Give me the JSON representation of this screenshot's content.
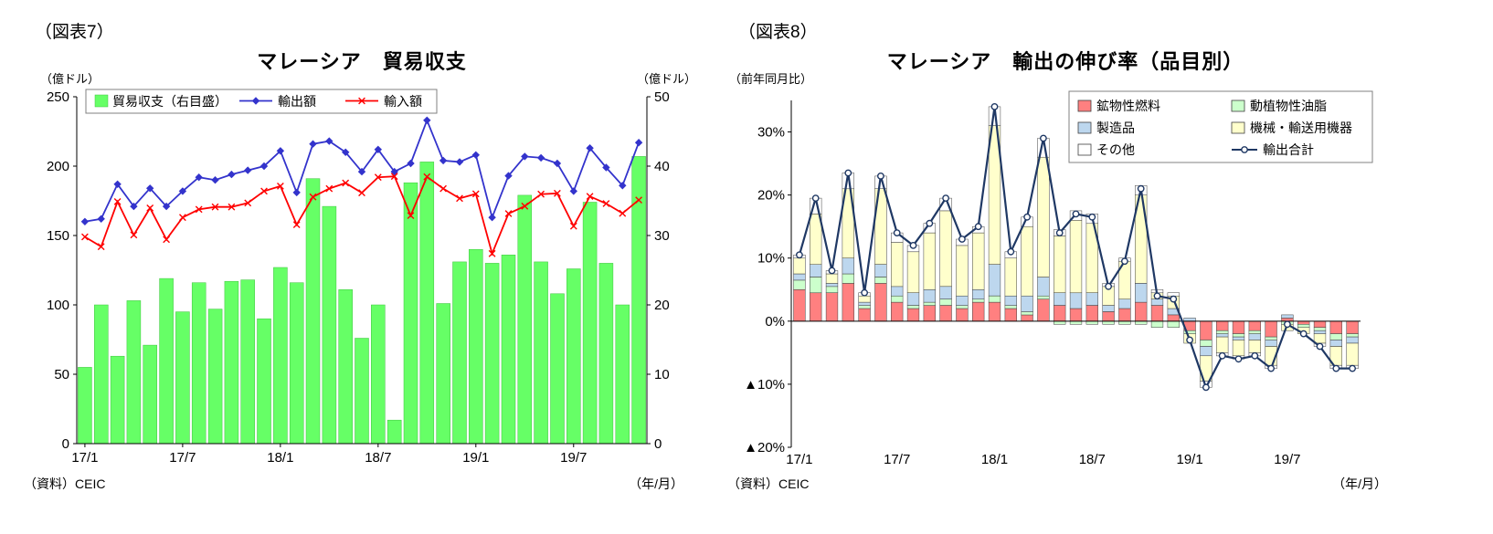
{
  "figure7": {
    "label": "（図表7）",
    "title": "マレーシア　貿易収支",
    "left_axis_unit": "（億ドル）",
    "right_axis_unit": "（億ドル）",
    "source": "（資料）CEIC",
    "x_note": "（年/月）"
  },
  "figure8": {
    "label": "（図表8）",
    "title": "マレーシア　輸出の伸び率（品目別）",
    "y_axis_unit": "（前年同月比）",
    "source": "（資料）CEIC",
    "x_note": "（年/月）"
  },
  "chart_data": [
    {
      "type": "bar+line",
      "title": "マレーシア　貿易収支",
      "x": [
        "17/1",
        "17/2",
        "17/3",
        "17/4",
        "17/5",
        "17/6",
        "17/7",
        "17/8",
        "17/9",
        "17/10",
        "17/11",
        "17/12",
        "18/1",
        "18/2",
        "18/3",
        "18/4",
        "18/5",
        "18/6",
        "18/7",
        "18/8",
        "18/9",
        "18/10",
        "18/11",
        "18/12",
        "19/1",
        "19/2",
        "19/3",
        "19/4",
        "19/5",
        "19/6",
        "19/7",
        "19/8",
        "19/9",
        "19/10",
        "19/11"
      ],
      "x_tick_labels": [
        "17/1",
        "17/7",
        "18/1",
        "18/7",
        "19/1",
        "19/7"
      ],
      "left_axis": {
        "unit": "（億ドル）",
        "range": [
          0,
          250
        ],
        "ticks": [
          0,
          50,
          100,
          150,
          200,
          250
        ]
      },
      "right_axis": {
        "unit": "（億ドル）",
        "range": [
          0,
          50
        ],
        "ticks": [
          0,
          10,
          20,
          30,
          40,
          50
        ]
      },
      "grid": false,
      "legend_position": "top-left",
      "series": [
        {
          "name": "貿易収支（右目盛）",
          "type": "bar",
          "axis": "right",
          "color": "#66FF66",
          "values": [
            11.0,
            20.0,
            12.6,
            20.6,
            14.2,
            23.8,
            19.0,
            23.2,
            19.4,
            23.4,
            23.6,
            18.0,
            25.4,
            23.2,
            38.2,
            34.2,
            22.2,
            15.2,
            20.0,
            3.4,
            37.6,
            40.6,
            20.2,
            26.2,
            28.0,
            26.0,
            27.2,
            35.8,
            26.2,
            21.6,
            25.2,
            34.8,
            26.0,
            20.0,
            41.4
          ]
        },
        {
          "name": "輸出額",
          "type": "line",
          "axis": "left",
          "color": "#3333CC",
          "marker": "diamond",
          "values": [
            160,
            162,
            187,
            171,
            184,
            171,
            182,
            192,
            190,
            194,
            197,
            200,
            211,
            181,
            216,
            218,
            210,
            196,
            212,
            196,
            202,
            233,
            204,
            203,
            208,
            163,
            193,
            207,
            206,
            202,
            182,
            213,
            199,
            186,
            217
          ]
        },
        {
          "name": "輸入額",
          "type": "line",
          "axis": "left",
          "color": "#FF0000",
          "marker": "x",
          "values": [
            149,
            142,
            174.4,
            150.4,
            169.8,
            147.2,
            163,
            168.8,
            170.6,
            170.6,
            173.4,
            182,
            185.6,
            157.8,
            177.8,
            183.8,
            187.8,
            180.8,
            192,
            192.6,
            164.4,
            192.4,
            183.8,
            176.8,
            180,
            137,
            165.8,
            171.2,
            179.8,
            180.4,
            156.8,
            178.2,
            173,
            166,
            175.6
          ]
        }
      ]
    },
    {
      "type": "stacked-bar+line",
      "title": "マレーシア　輸出の伸び率（品目別）",
      "x": [
        "17/1",
        "17/2",
        "17/3",
        "17/4",
        "17/5",
        "17/6",
        "17/7",
        "17/8",
        "17/9",
        "17/10",
        "17/11",
        "17/12",
        "18/1",
        "18/2",
        "18/3",
        "18/4",
        "18/5",
        "18/6",
        "18/7",
        "18/8",
        "18/9",
        "18/10",
        "18/11",
        "18/12",
        "19/1",
        "19/2",
        "19/3",
        "19/4",
        "19/5",
        "19/6",
        "19/7",
        "19/8",
        "19/9",
        "19/10",
        "19/11"
      ],
      "x_tick_labels": [
        "17/1",
        "17/7",
        "18/1",
        "18/7",
        "19/1",
        "19/7"
      ],
      "y_axis": {
        "unit": "（前年同月比）",
        "range": [
          -20,
          35
        ],
        "ticks": [
          30,
          20,
          10,
          0,
          -10,
          -20
        ],
        "tick_labels": [
          "30%",
          "20%",
          "10%",
          "0%",
          "▲10%",
          "▲20%"
        ]
      },
      "grid": false,
      "legend_position": "top-right",
      "series": [
        {
          "name": "鉱物性燃料",
          "type": "bar",
          "color": "#FF8080",
          "values": [
            5.0,
            4.5,
            4.5,
            6.0,
            2.0,
            6.0,
            3.0,
            2.0,
            2.5,
            2.5,
            2.0,
            3.0,
            3.0,
            2.0,
            1.0,
            3.5,
            2.5,
            2.0,
            2.5,
            1.5,
            2.0,
            3.0,
            2.5,
            1.0,
            -1.5,
            -3.0,
            -1.5,
            -2.0,
            -1.5,
            -2.5,
            0.5,
            -0.5,
            -1.0,
            -2.0,
            -2.0
          ]
        },
        {
          "name": "動植物性油脂",
          "type": "bar",
          "color": "#CCFFCC",
          "values": [
            1.5,
            2.5,
            1.0,
            1.5,
            0.5,
            1.0,
            1.0,
            0.5,
            0.5,
            1.0,
            0.5,
            0.5,
            1.0,
            0.5,
            0.5,
            0.5,
            -0.5,
            -0.5,
            -0.5,
            -0.5,
            -0.5,
            -0.5,
            -1.0,
            -1.0,
            -0.5,
            -1.0,
            -0.5,
            -0.5,
            -0.5,
            -0.5,
            -0.5,
            -0.5,
            -0.5,
            -1.0,
            -0.5
          ]
        },
        {
          "name": "製造品",
          "type": "bar",
          "color": "#BDD7EE",
          "values": [
            1.0,
            2.0,
            0.5,
            2.5,
            0.5,
            2.0,
            1.5,
            2.0,
            2.0,
            2.0,
            1.5,
            1.5,
            5.0,
            1.5,
            2.5,
            3.0,
            2.0,
            2.5,
            2.0,
            1.0,
            1.5,
            3.0,
            1.0,
            1.0,
            0.5,
            -1.5,
            -0.5,
            -0.5,
            -1.0,
            -1.0,
            0.5,
            0.0,
            -0.5,
            -1.0,
            -1.0
          ]
        },
        {
          "name": "機械・輸送用機器",
          "type": "bar",
          "color": "#FFFFCC",
          "values": [
            2.5,
            8.0,
            1.5,
            11.0,
            1.0,
            12.0,
            7.0,
            6.5,
            9.0,
            12.0,
            8.0,
            9.0,
            22.0,
            6.0,
            11.0,
            19.0,
            9.0,
            11.5,
            11.0,
            3.0,
            6.0,
            14.0,
            1.0,
            2.0,
            -1.5,
            -4.0,
            -2.5,
            -2.5,
            -2.0,
            -3.0,
            -1.0,
            -1.0,
            -1.5,
            -3.0,
            -3.5
          ]
        },
        {
          "name": "その他",
          "type": "bar",
          "color": "#FFFFFF",
          "values": [
            0.5,
            2.5,
            0.5,
            2.5,
            0.5,
            2.0,
            1.5,
            1.0,
            1.5,
            2.0,
            1.0,
            1.0,
            3.0,
            1.0,
            1.5,
            3.0,
            1.0,
            1.5,
            1.5,
            0.5,
            0.5,
            1.5,
            0.5,
            0.5,
            0.0,
            -1.0,
            -0.5,
            -0.5,
            -0.5,
            -0.5,
            0.0,
            0.0,
            -0.5,
            -0.5,
            -0.5
          ]
        },
        {
          "name": "輸出合計",
          "type": "line",
          "color": "#1F3864",
          "marker": "circle",
          "values": [
            10.5,
            19.5,
            8.0,
            23.5,
            4.5,
            23.0,
            14.0,
            12.0,
            15.5,
            19.5,
            13.0,
            15.0,
            34.0,
            11.0,
            16.5,
            29.0,
            14.0,
            17.0,
            16.5,
            5.5,
            9.5,
            21.0,
            4.0,
            3.5,
            -3.0,
            -10.5,
            -5.5,
            -6.0,
            -5.5,
            -7.5,
            -0.5,
            -2.0,
            -4.0,
            -7.5,
            -7.5
          ]
        }
      ]
    }
  ]
}
